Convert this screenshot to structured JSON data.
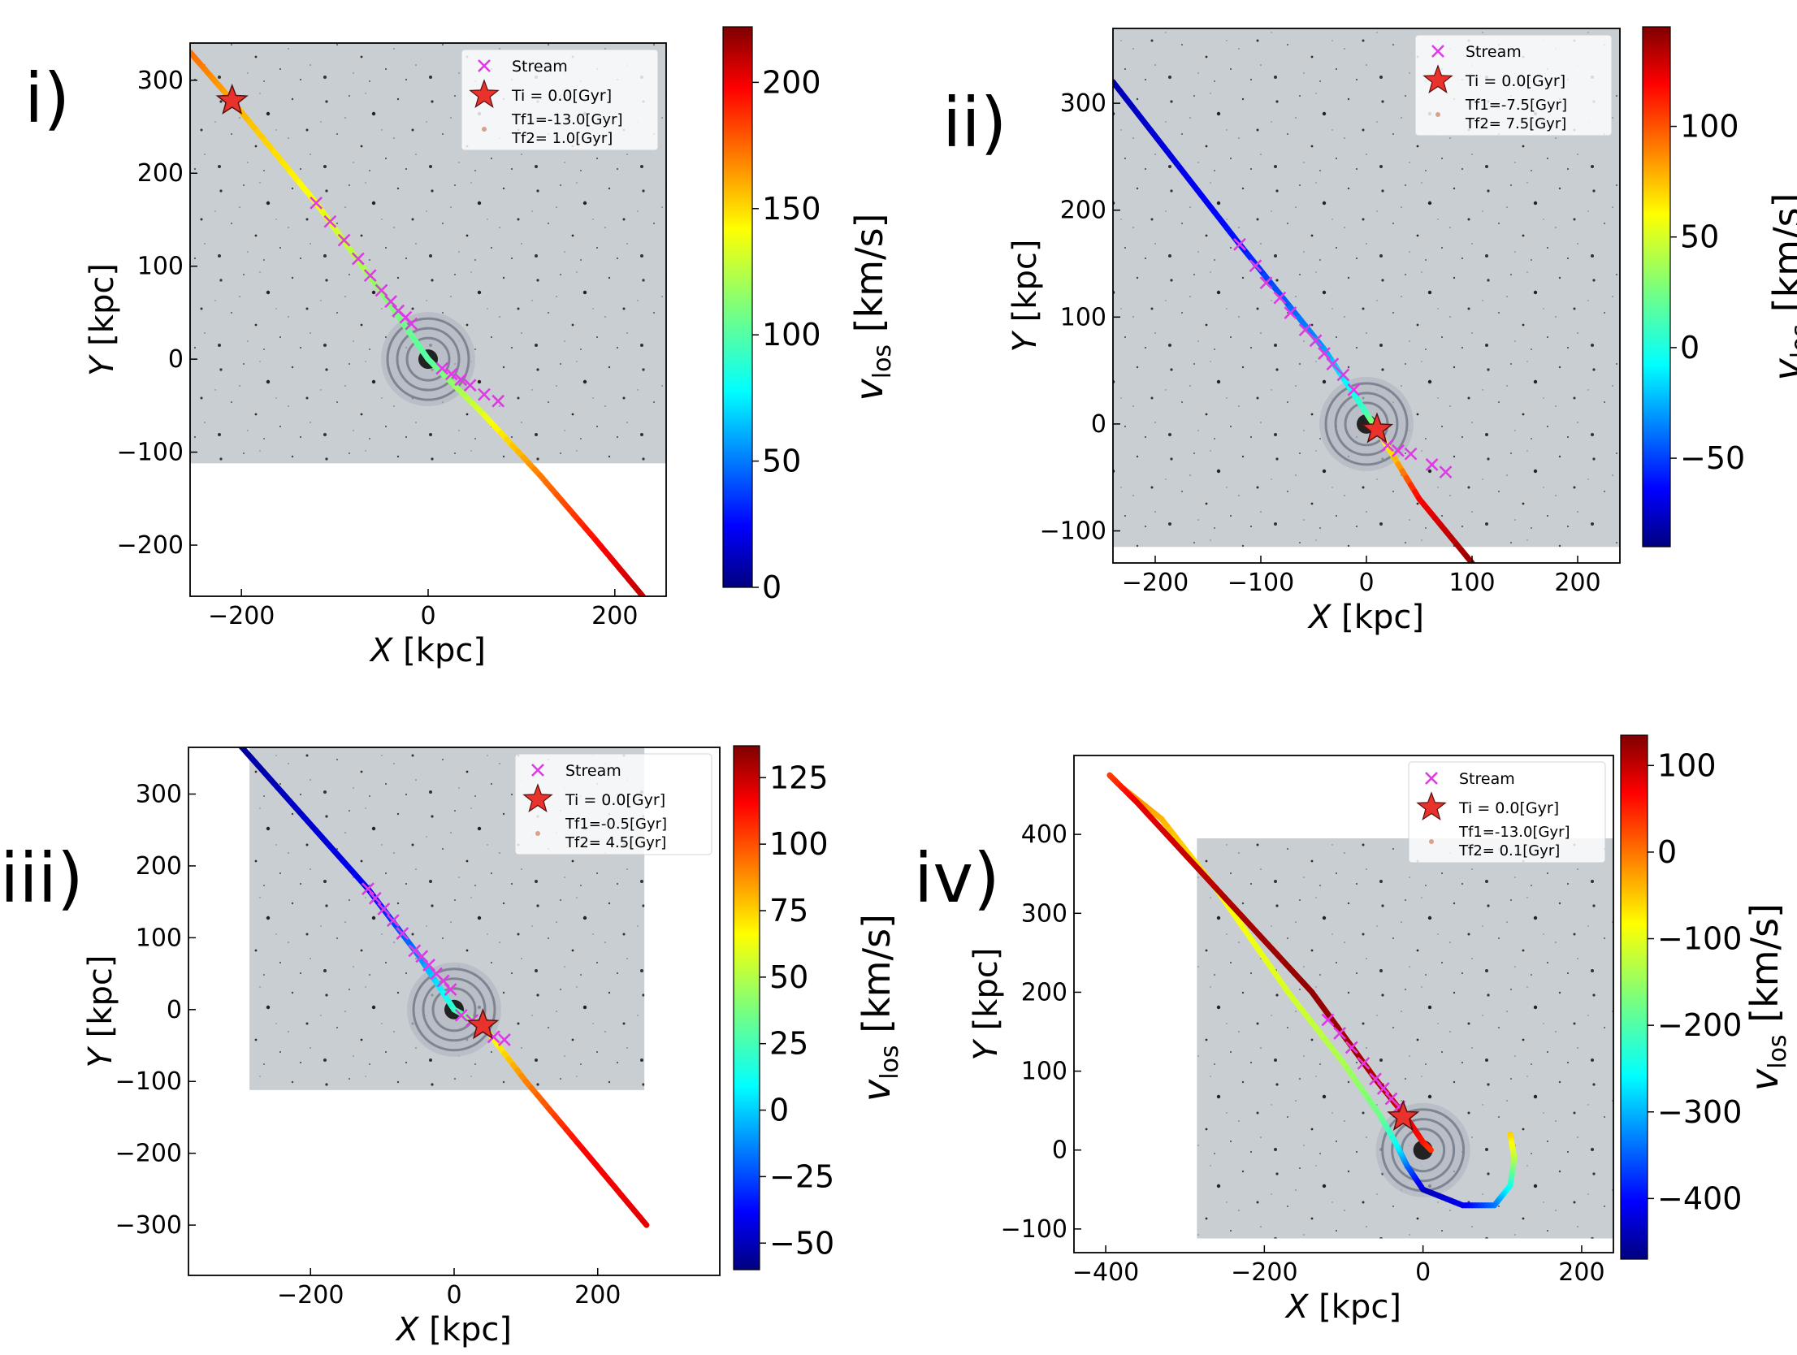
{
  "figure": {
    "panels": [
      "i)",
      "ii)",
      "iii)",
      "iv)"
    ],
    "colorbar_label": "v_los [km/s]"
  },
  "chart_data": [
    {
      "type": "line",
      "panel": "i)",
      "xlabel": "X [kpc]",
      "ylabel": "Y [kpc]",
      "xlim": [
        -255,
        255
      ],
      "ylim": [
        -255,
        340
      ],
      "xticks": [
        -200,
        0,
        200
      ],
      "yticks": [
        -200,
        -100,
        0,
        100,
        200,
        300
      ],
      "background_image_extent": {
        "x": [
          -255,
          255
        ],
        "y": [
          -112,
          340
        ]
      },
      "orbit": [
        [
          -255,
          330,
          175
        ],
        [
          -210,
          278,
          160
        ],
        [
          -120,
          168,
          140
        ],
        [
          -50,
          72,
          115
        ],
        [
          0,
          0,
          100
        ],
        [
          60,
          -60,
          135
        ],
        [
          120,
          -125,
          170
        ],
        [
          180,
          -195,
          195
        ],
        [
          230,
          -255,
          210
        ]
      ],
      "stream": [
        [
          -120,
          168
        ],
        [
          -105,
          148
        ],
        [
          -90,
          128
        ],
        [
          -75,
          108
        ],
        [
          -62,
          90
        ],
        [
          -50,
          74
        ],
        [
          -40,
          62
        ],
        [
          -32,
          52
        ],
        [
          -24,
          45
        ],
        [
          -18,
          38
        ],
        [
          15,
          -10
        ],
        [
          25,
          -16
        ],
        [
          35,
          -22
        ],
        [
          45,
          -28
        ],
        [
          60,
          -38
        ],
        [
          75,
          -45
        ]
      ],
      "progenitor": [
        -210,
        278
      ],
      "legend": {
        "position": "top-right",
        "entries": [
          "Stream",
          "Ti  = 0.0[Gyr]",
          "Tf1=-13.0[Gyr]",
          "Tf2= 1.0[Gyr]"
        ]
      },
      "colorbar": {
        "min": 0,
        "max": 222,
        "ticks": [
          0,
          50,
          100,
          150,
          200
        ],
        "label": "v_los [km/s]"
      }
    },
    {
      "type": "line",
      "panel": "ii)",
      "xlabel": "X [kpc]",
      "ylabel": "Y [kpc]",
      "xlim": [
        -240,
        240
      ],
      "ylim": [
        -130,
        370
      ],
      "xticks": [
        -200,
        -100,
        0,
        100,
        200
      ],
      "yticks": [
        -100,
        0,
        100,
        200,
        300
      ],
      "background_image_extent": {
        "x": [
          -240,
          240
        ],
        "y": [
          -115,
          370
        ]
      },
      "orbit": [
        [
          -240,
          320,
          -80
        ],
        [
          -120,
          168,
          -60
        ],
        [
          -40,
          70,
          -30
        ],
        [
          0,
          10,
          10
        ],
        [
          10,
          -5,
          40
        ],
        [
          50,
          -70,
          120
        ],
        [
          100,
          -130,
          140
        ]
      ],
      "stream": [
        [
          -120,
          168
        ],
        [
          -105,
          148
        ],
        [
          -95,
          132
        ],
        [
          -82,
          118
        ],
        [
          -72,
          104
        ],
        [
          -58,
          88
        ],
        [
          -48,
          78
        ],
        [
          -40,
          66
        ],
        [
          -32,
          56
        ],
        [
          -22,
          46
        ],
        [
          -12,
          32
        ],
        [
          20,
          -20
        ],
        [
          30,
          -25
        ],
        [
          42,
          -28
        ],
        [
          62,
          -38
        ],
        [
          75,
          -45
        ]
      ],
      "progenitor": [
        10,
        -5
      ],
      "legend": {
        "position": "top-right",
        "entries": [
          "Stream",
          "Ti  = 0.0[Gyr]",
          "Tf1=-7.5[Gyr]",
          "Tf2= 7.5[Gyr]"
        ]
      },
      "colorbar": {
        "min": -90,
        "max": 145,
        "ticks": [
          -50,
          0,
          50,
          100
        ],
        "label": "v_los [km/s]"
      }
    },
    {
      "type": "line",
      "panel": "iii)",
      "xlabel": "X [kpc]",
      "ylabel": "Y [kpc]",
      "xlim": [
        -370,
        370
      ],
      "ylim": [
        -370,
        365
      ],
      "xticks": [
        -200,
        0,
        200
      ],
      "yticks": [
        -300,
        -200,
        -100,
        0,
        100,
        200,
        300
      ],
      "background_image_extent": {
        "x": [
          -285,
          265
        ],
        "y": [
          -112,
          365
        ]
      },
      "orbit": [
        [
          -300,
          370,
          -55
        ],
        [
          -120,
          168,
          -40
        ],
        [
          -50,
          76,
          -15
        ],
        [
          0,
          0,
          20
        ],
        [
          40,
          -22,
          55
        ],
        [
          100,
          -100,
          90
        ],
        [
          180,
          -195,
          115
        ],
        [
          268,
          -300,
          120
        ]
      ],
      "stream": [
        [
          -120,
          168
        ],
        [
          -110,
          155
        ],
        [
          -98,
          140
        ],
        [
          -85,
          124
        ],
        [
          -72,
          106
        ],
        [
          -55,
          82
        ],
        [
          -45,
          74
        ],
        [
          -35,
          62
        ],
        [
          -25,
          50
        ],
        [
          -15,
          40
        ],
        [
          -5,
          28
        ],
        [
          10,
          -8
        ],
        [
          25,
          -15
        ],
        [
          40,
          -22
        ],
        [
          55,
          -38
        ],
        [
          70,
          -42
        ]
      ],
      "progenitor": [
        40,
        -22
      ],
      "legend": {
        "position": "top-right",
        "entries": [
          "Stream",
          "Ti  = 0.0[Gyr]",
          "Tf1=-0.5[Gyr]",
          "Tf2= 4.5[Gyr]"
        ]
      },
      "colorbar": {
        "min": -60,
        "max": 137,
        "ticks": [
          -50,
          -25,
          0,
          25,
          50,
          75,
          100,
          125
        ],
        "label": "v_los [km/s]"
      }
    },
    {
      "type": "line",
      "panel": "iv)",
      "xlabel": "X [kpc]",
      "ylabel": "Y [kpc]",
      "xlim": [
        -440,
        240
      ],
      "ylim": [
        -130,
        500
      ],
      "xticks": [
        -400,
        -200,
        0,
        200
      ],
      "yticks": [
        -100,
        0,
        100,
        200,
        300,
        400
      ],
      "background_image_extent": {
        "x": [
          -285,
          240
        ],
        "y": [
          -112,
          395
        ]
      },
      "orbit": [
        [
          110,
          20,
          -50
        ],
        [
          115,
          -10,
          -120
        ],
        [
          110,
          -45,
          -230
        ],
        [
          90,
          -70,
          -330
        ],
        [
          50,
          -70,
          -410
        ],
        [
          0,
          -50,
          -440
        ],
        [
          -20,
          -20,
          -350
        ],
        [
          -35,
          10,
          -250
        ],
        [
          -55,
          45,
          -180
        ],
        [
          -100,
          110,
          -140
        ],
        [
          -170,
          200,
          -110
        ],
        [
          -260,
          330,
          -80
        ],
        [
          -330,
          420,
          -40
        ],
        [
          -380,
          460,
          -10
        ],
        [
          -395,
          475,
          30
        ],
        [
          -360,
          440,
          80
        ],
        [
          -250,
          320,
          110
        ],
        [
          -140,
          200,
          125
        ],
        [
          -60,
          90,
          110
        ],
        [
          -20,
          40,
          90
        ],
        [
          0,
          10,
          60
        ],
        [
          10,
          0,
          40
        ]
      ],
      "stream": [
        [
          -120,
          165
        ],
        [
          -105,
          148
        ],
        [
          -90,
          130
        ],
        [
          -75,
          110
        ],
        [
          -60,
          90
        ],
        [
          -50,
          78
        ],
        [
          -40,
          65
        ],
        [
          -30,
          55
        ]
      ],
      "progenitor": [
        -25,
        42
      ],
      "legend": {
        "position": "top-right",
        "entries": [
          "Stream",
          "Ti  = 0.0[Gyr]",
          "Tf1=-13.0[Gyr]",
          "Tf2= 0.1[Gyr]"
        ]
      },
      "colorbar": {
        "min": -470,
        "max": 135,
        "ticks": [
          -400,
          -300,
          -200,
          -100,
          0,
          100
        ],
        "label": "v_los [km/s]"
      }
    }
  ]
}
